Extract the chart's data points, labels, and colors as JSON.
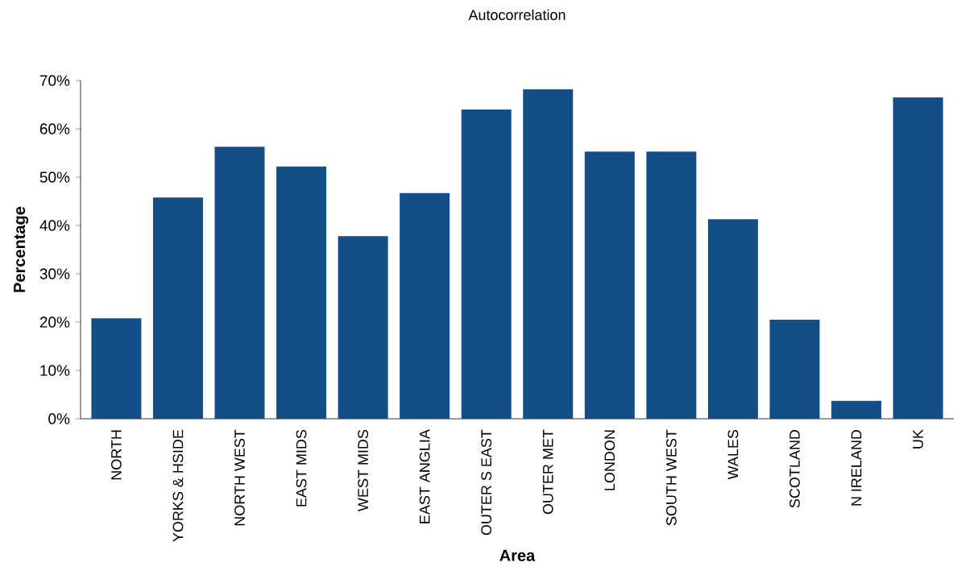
{
  "chart_data": {
    "type": "bar",
    "title": "Autocorrelation",
    "xlabel": "Area",
    "ylabel": "Percentage",
    "categories": [
      "NORTH",
      "YORKS & HSIDE",
      "NORTH WEST",
      "EAST MIDS",
      "WEST MIDS",
      "EAST ANGLIA",
      "OUTER S EAST",
      "OUTER MET",
      "LONDON",
      "SOUTH WEST",
      "WALES",
      "SCOTLAND",
      "N IRELAND",
      "UK"
    ],
    "values": [
      20.8,
      45.8,
      56.3,
      52.2,
      37.8,
      46.7,
      64,
      68.2,
      55.3,
      55.3,
      41.3,
      20.5,
      3.7,
      66.5
    ],
    "color": "#134f86",
    "ylim": [
      0,
      70
    ],
    "yticks": [
      {
        "value": 0,
        "label": "0%"
      },
      {
        "value": 10,
        "label": "10%"
      },
      {
        "value": 20,
        "label": "20%"
      },
      {
        "value": 30,
        "label": "30%"
      },
      {
        "value": 40,
        "label": "40%"
      },
      {
        "value": 50,
        "label": "50%"
      },
      {
        "value": 60,
        "label": "60%"
      },
      {
        "value": 70,
        "label": "70%"
      }
    ],
    "grid": false
  }
}
